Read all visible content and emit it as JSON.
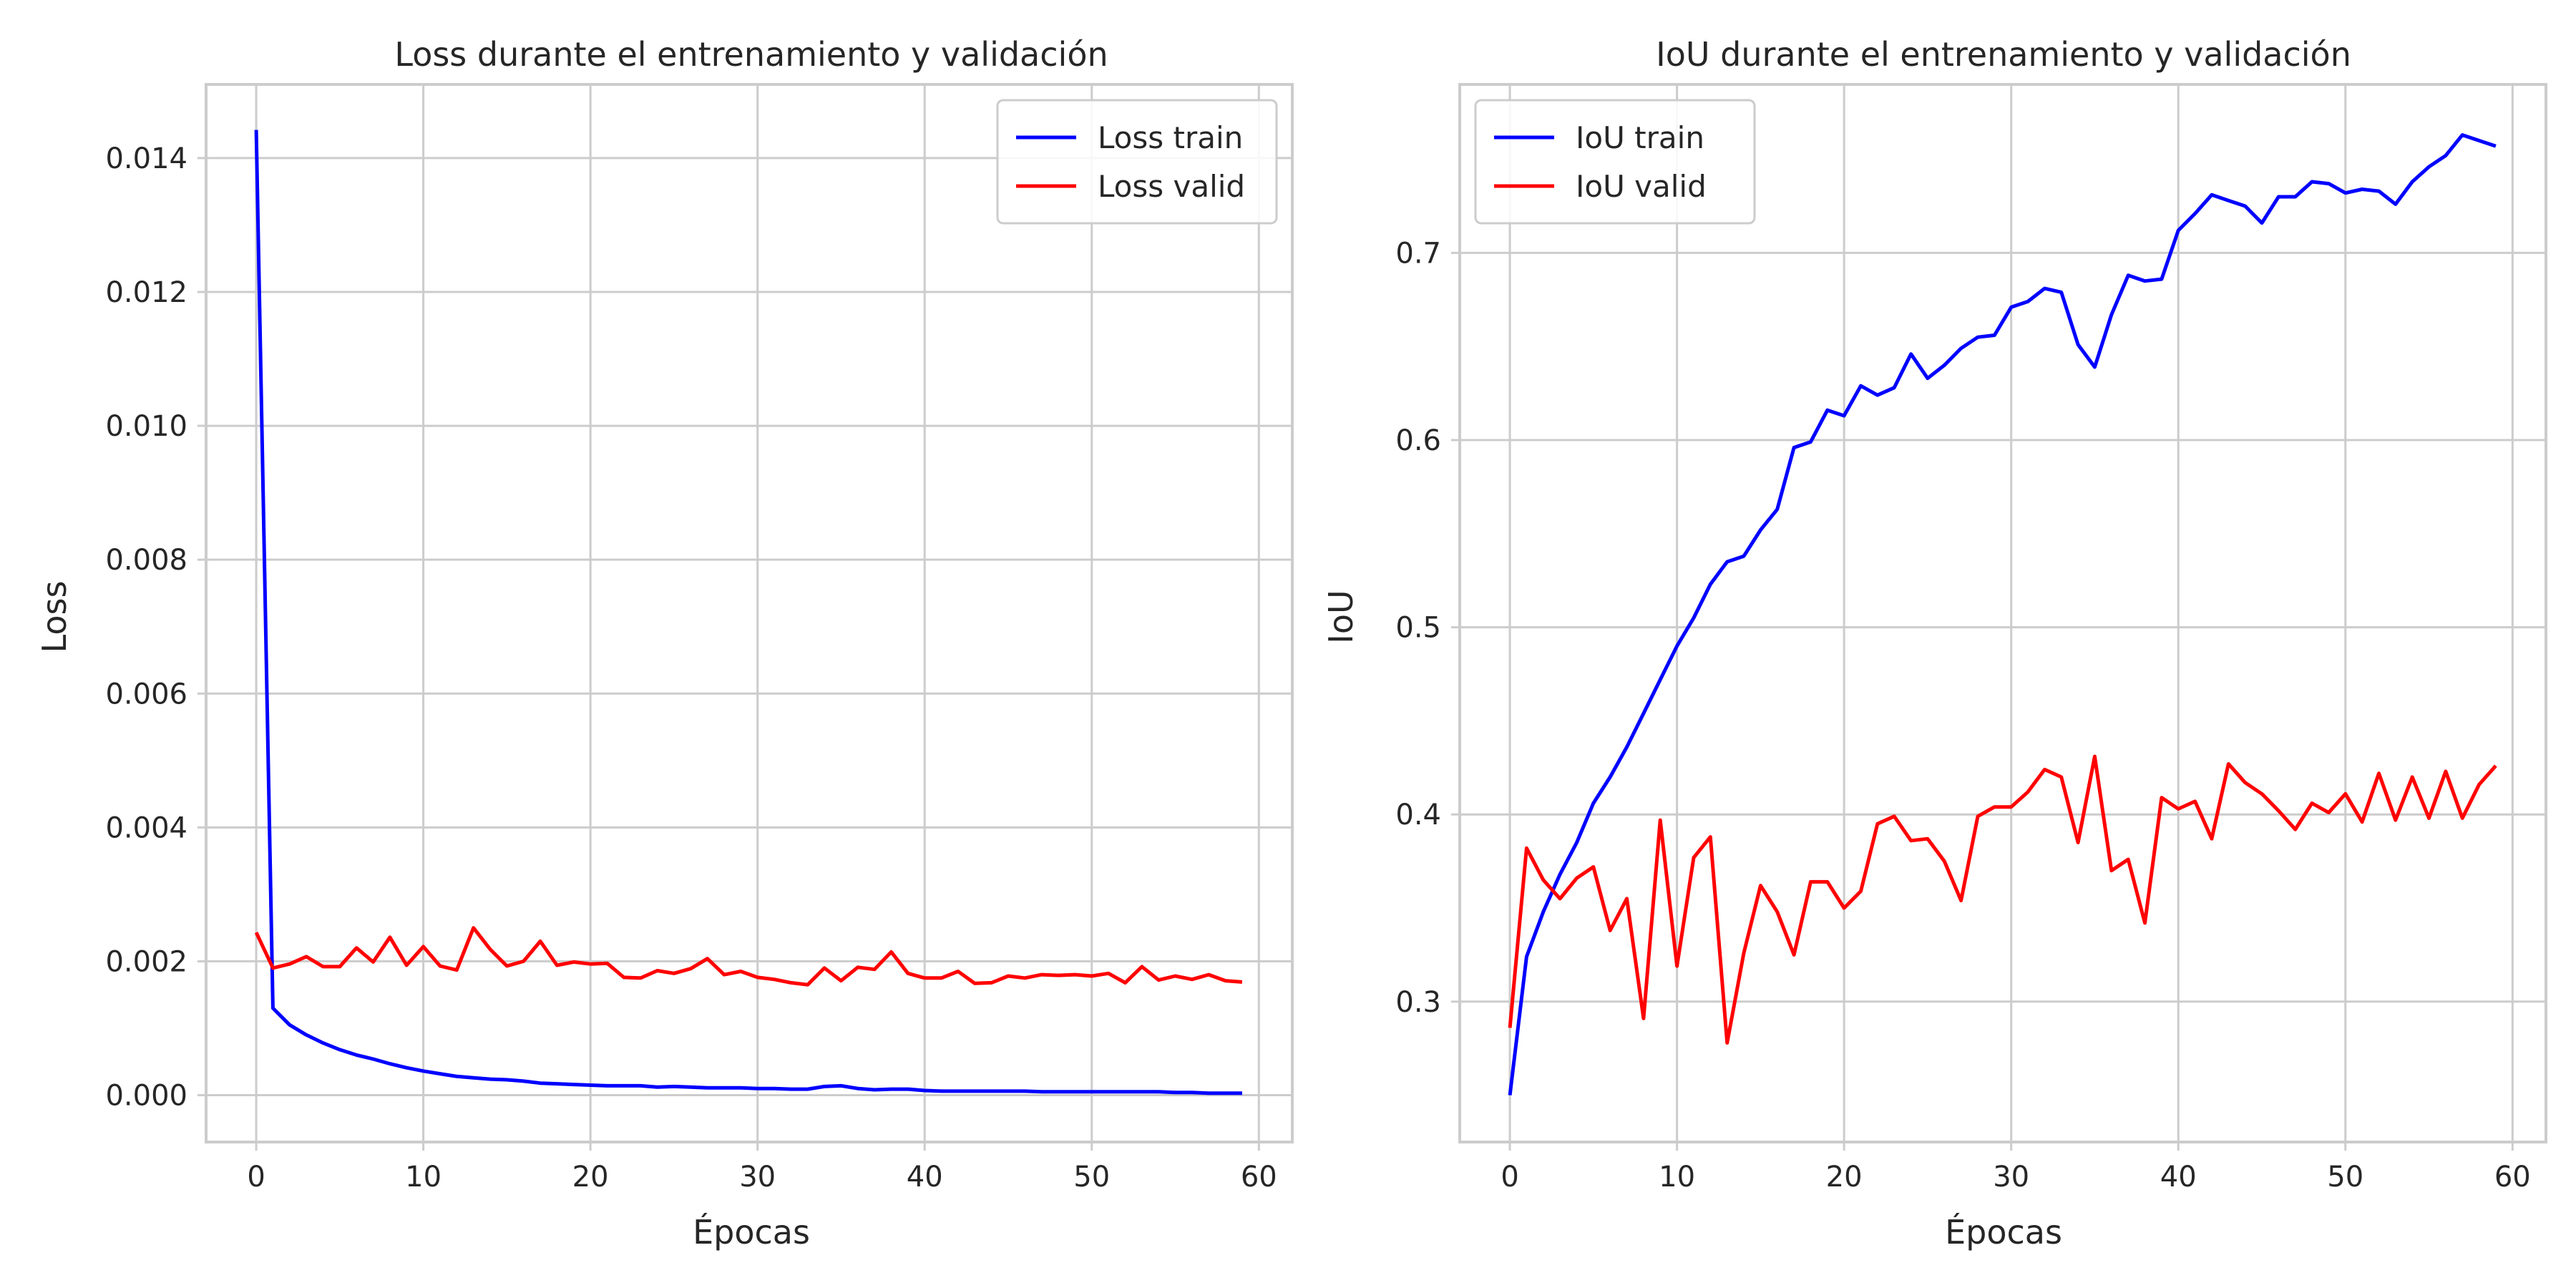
{
  "chart_data": [
    {
      "type": "line",
      "title": "Loss durante el entrenamiento y validación",
      "xlabel": "Épocas",
      "ylabel": "Loss",
      "xlim": [
        -3,
        62
      ],
      "ylim": [
        -0.0007,
        0.0151
      ],
      "xticks": [
        0,
        10,
        20,
        30,
        40,
        50,
        60
      ],
      "xtick_labels": [
        "0",
        "10",
        "20",
        "30",
        "40",
        "50",
        "60"
      ],
      "yticks": [
        0,
        0.002,
        0.004,
        0.006,
        0.008,
        0.01,
        0.012,
        0.014
      ],
      "ytick_labels": [
        "0.000",
        "0.002",
        "0.004",
        "0.006",
        "0.008",
        "0.010",
        "0.012",
        "0.014"
      ],
      "grid": true,
      "legend_position": "upper right",
      "x": [
        0,
        1,
        2,
        3,
        4,
        5,
        6,
        7,
        8,
        9,
        10,
        11,
        12,
        13,
        14,
        15,
        16,
        17,
        18,
        19,
        20,
        21,
        22,
        23,
        24,
        25,
        26,
        27,
        28,
        29,
        30,
        31,
        32,
        33,
        34,
        35,
        36,
        37,
        38,
        39,
        40,
        41,
        42,
        43,
        44,
        45,
        46,
        47,
        48,
        49,
        50,
        51,
        52,
        53,
        54,
        55,
        56,
        57,
        58,
        59
      ],
      "series": [
        {
          "name": "Loss train",
          "color": "#0000ff",
          "values": [
            0.01442,
            0.0013,
            0.00105,
            0.0009,
            0.00078,
            0.00068,
            0.0006,
            0.00054,
            0.00047,
            0.00041,
            0.00036,
            0.00032,
            0.00028,
            0.00026,
            0.00024,
            0.00023,
            0.00021,
            0.00018,
            0.00017,
            0.00016,
            0.00015,
            0.00014,
            0.00014,
            0.00014,
            0.00012,
            0.00013,
            0.00012,
            0.00011,
            0.00011,
            0.00011,
            0.0001,
            0.0001,
            9e-05,
            9e-05,
            0.00013,
            0.00014,
            0.0001,
            8e-05,
            9e-05,
            9e-05,
            7e-05,
            6e-05,
            6e-05,
            6e-05,
            6e-05,
            6e-05,
            6e-05,
            5e-05,
            5e-05,
            5e-05,
            5e-05,
            5e-05,
            5e-05,
            5e-05,
            5e-05,
            4e-05,
            4e-05,
            3e-05,
            3e-05,
            3e-05
          ]
        },
        {
          "name": "Loss valid",
          "color": "#ff0000",
          "values": [
            0.00243,
            0.0019,
            0.00196,
            0.00207,
            0.00192,
            0.00192,
            0.0022,
            0.00199,
            0.00236,
            0.00194,
            0.00222,
            0.00193,
            0.00187,
            0.0025,
            0.00218,
            0.00193,
            0.002,
            0.0023,
            0.00194,
            0.00199,
            0.00196,
            0.00197,
            0.00176,
            0.00175,
            0.00186,
            0.00182,
            0.00189,
            0.00204,
            0.0018,
            0.00185,
            0.00176,
            0.00173,
            0.00168,
            0.00165,
            0.0019,
            0.00171,
            0.00191,
            0.00188,
            0.00214,
            0.00182,
            0.00175,
            0.00175,
            0.00185,
            0.00167,
            0.00168,
            0.00178,
            0.00175,
            0.0018,
            0.00179,
            0.0018,
            0.00178,
            0.00182,
            0.00168,
            0.00192,
            0.00172,
            0.00178,
            0.00173,
            0.0018,
            0.00171,
            0.00169
          ]
        }
      ]
    },
    {
      "type": "line",
      "title": "IoU durante el entrenamiento y validación",
      "xlabel": "Épocas",
      "ylabel": "IoU",
      "xlim": [
        -3,
        62
      ],
      "ylim": [
        0.225,
        0.79
      ],
      "xticks": [
        0,
        10,
        20,
        30,
        40,
        50,
        60
      ],
      "xtick_labels": [
        "0",
        "10",
        "20",
        "30",
        "40",
        "50",
        "60"
      ],
      "yticks": [
        0.3,
        0.4,
        0.5,
        0.6,
        0.7
      ],
      "ytick_labels": [
        "0.3",
        "0.4",
        "0.5",
        "0.6",
        "0.7"
      ],
      "grid": true,
      "legend_position": "upper left",
      "x": [
        0,
        1,
        2,
        3,
        4,
        5,
        6,
        7,
        8,
        9,
        10,
        11,
        12,
        13,
        14,
        15,
        16,
        17,
        18,
        19,
        20,
        21,
        22,
        23,
        24,
        25,
        26,
        27,
        28,
        29,
        30,
        31,
        32,
        33,
        34,
        35,
        36,
        37,
        38,
        39,
        40,
        41,
        42,
        43,
        44,
        45,
        46,
        47,
        48,
        49,
        50,
        51,
        52,
        53,
        54,
        55,
        56,
        57,
        58,
        59
      ],
      "series": [
        {
          "name": "IoU train",
          "color": "#0000ff",
          "values": [
            0.25,
            0.324,
            0.348,
            0.368,
            0.385,
            0.406,
            0.42,
            0.436,
            0.454,
            0.472,
            0.49,
            0.505,
            0.523,
            0.535,
            0.538,
            0.552,
            0.563,
            0.596,
            0.599,
            0.616,
            0.613,
            0.629,
            0.624,
            0.628,
            0.646,
            0.633,
            0.64,
            0.649,
            0.655,
            0.656,
            0.671,
            0.674,
            0.681,
            0.679,
            0.651,
            0.639,
            0.667,
            0.688,
            0.685,
            0.686,
            0.712,
            0.721,
            0.731,
            0.728,
            0.725,
            0.716,
            0.73,
            0.73,
            0.738,
            0.737,
            0.732,
            0.734,
            0.733,
            0.726,
            0.738,
            0.746,
            0.752,
            0.763,
            0.76,
            0.757
          ]
        },
        {
          "name": "IoU valid",
          "color": "#ff0000",
          "values": [
            0.286,
            0.382,
            0.365,
            0.355,
            0.366,
            0.372,
            0.338,
            0.355,
            0.291,
            0.397,
            0.319,
            0.377,
            0.388,
            0.278,
            0.326,
            0.362,
            0.348,
            0.325,
            0.364,
            0.364,
            0.35,
            0.359,
            0.395,
            0.399,
            0.386,
            0.387,
            0.375,
            0.354,
            0.399,
            0.404,
            0.404,
            0.412,
            0.424,
            0.42,
            0.385,
            0.431,
            0.37,
            0.376,
            0.342,
            0.409,
            0.403,
            0.407,
            0.387,
            0.427,
            0.417,
            0.411,
            0.402,
            0.392,
            0.406,
            0.401,
            0.411,
            0.396,
            0.422,
            0.397,
            0.42,
            0.398,
            0.423,
            0.398,
            0.416,
            0.426
          ]
        }
      ]
    }
  ]
}
